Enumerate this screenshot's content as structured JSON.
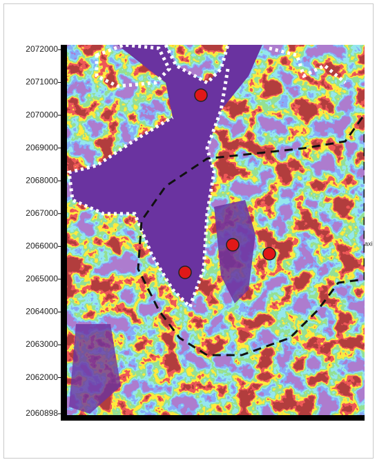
{
  "map": {
    "ylim": [
      2060898,
      2072000
    ],
    "yticks": [
      2072000,
      2071000,
      2070000,
      2069000,
      2068000,
      2067000,
      2066000,
      2065000,
      2064000,
      2063000,
      2062000,
      2060898
    ],
    "edge_label": "axi"
  }
}
